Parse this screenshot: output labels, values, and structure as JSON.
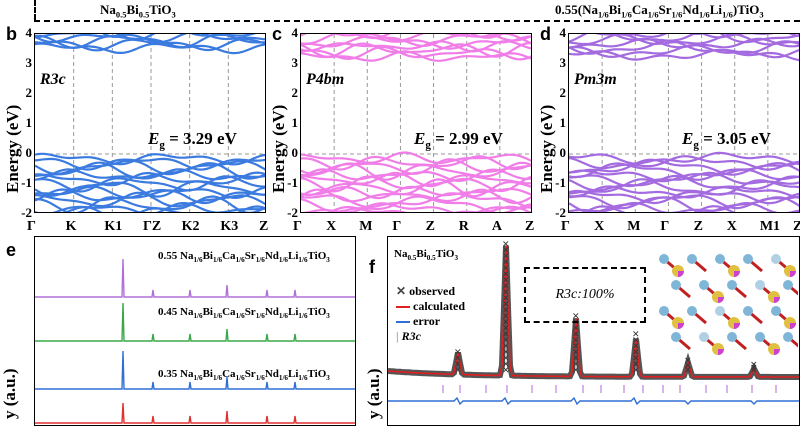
{
  "header": {
    "left_formula": "Na<sub>0.5</sub>Bi<sub>0.5</sub>TiO<sub>3</sub>",
    "right_formula": "0.55(Na<sub>1/6</sub>Bi<sub>1/6</sub>Ca<sub>1/6</sub>Sr<sub>1/6</sub>Nd<sub>1/6</sub>Li<sub>1/6</sub>)TiO<sub>3</sub>"
  },
  "band_panels": [
    {
      "label": "b",
      "space_group": "R3c",
      "gap_label": "E",
      "gap_sub": "g",
      "gap_value": "= 3.29 eV",
      "color": "#3b7be0",
      "kpoints": [
        "Γ",
        "K",
        "K1",
        "ΓZ",
        "K2",
        "K3",
        "Z"
      ],
      "ylabel": "Energy (eV)",
      "yticks": [
        "4",
        "3",
        "2",
        "1",
        "0",
        "-1",
        "-2"
      ],
      "ylim": [
        -2,
        4
      ],
      "gap_eV": 3.29
    },
    {
      "label": "c",
      "space_group": "P4bm",
      "gap_label": "E",
      "gap_sub": "g",
      "gap_value": "= 2.99 eV",
      "color": "#f07de8",
      "kpoints": [
        "Γ",
        "X",
        "M",
        "Γ",
        "Z",
        "R",
        "A",
        "Z"
      ],
      "ylabel": "Energy (eV)",
      "yticks": [
        "4",
        "3",
        "2",
        "1",
        "0",
        "-1",
        "-2"
      ],
      "ylim": [
        -2,
        4
      ],
      "gap_eV": 2.99
    },
    {
      "label": "d",
      "space_group": "Pm3m",
      "gap_label": "E",
      "gap_sub": "g",
      "gap_value": "= 3.05 eV",
      "color": "#a46be0",
      "kpoints": [
        "Γ",
        "X",
        "M",
        "Γ",
        "Z",
        "X",
        "M1",
        "Z"
      ],
      "ylabel": "Energy (eV)",
      "yticks": [
        "4",
        "3",
        "2",
        "1",
        "0",
        "-1",
        "-2"
      ],
      "ylim": [
        -2,
        4
      ],
      "gap_eV": 3.05
    }
  ],
  "panel_e": {
    "label": "e",
    "ylabel": "y (a.u.)",
    "patterns": [
      {
        "composition": "0.55 Na<sub>1/6</sub>Bi<sub>1/6</sub>Ca<sub>1/6</sub>Sr<sub>1/6</sub>Nd<sub>1/6</sub>Li<sub>1/6</sub>TiO<sub>3</sub>",
        "color": "#b070d8"
      },
      {
        "composition": "0.45 Na<sub>1/6</sub>Bi<sub>1/6</sub>Ca<sub>1/6</sub>Sr<sub>1/6</sub>Nd<sub>1/6</sub>Li<sub>1/6</sub>TiO<sub>3</sub>",
        "color": "#3aa84a"
      },
      {
        "composition": "0.35 Na<sub>1/6</sub>Bi<sub>1/6</sub>Ca<sub>1/6</sub>Sr<sub>1/6</sub>Nd<sub>1/6</sub>Li<sub>1/6</sub>TiO<sub>3</sub>",
        "color": "#2f6fd6"
      },
      {
        "composition": "",
        "color": "#e03030"
      }
    ]
  },
  "panel_f": {
    "label": "f",
    "title": "Na<sub>0.5</sub>Bi<sub>0.5</sub>TiO<sub>3</sub>",
    "ylabel": "y (a.u.)",
    "phase_box": "R3c:100%",
    "legend": [
      "observed",
      "calculated",
      "error",
      "R3c"
    ],
    "colors": {
      "observed": "#444444",
      "calculated": "#e02020",
      "error": "#2f6fd6",
      "ticks": "#c080e0"
    }
  }
}
